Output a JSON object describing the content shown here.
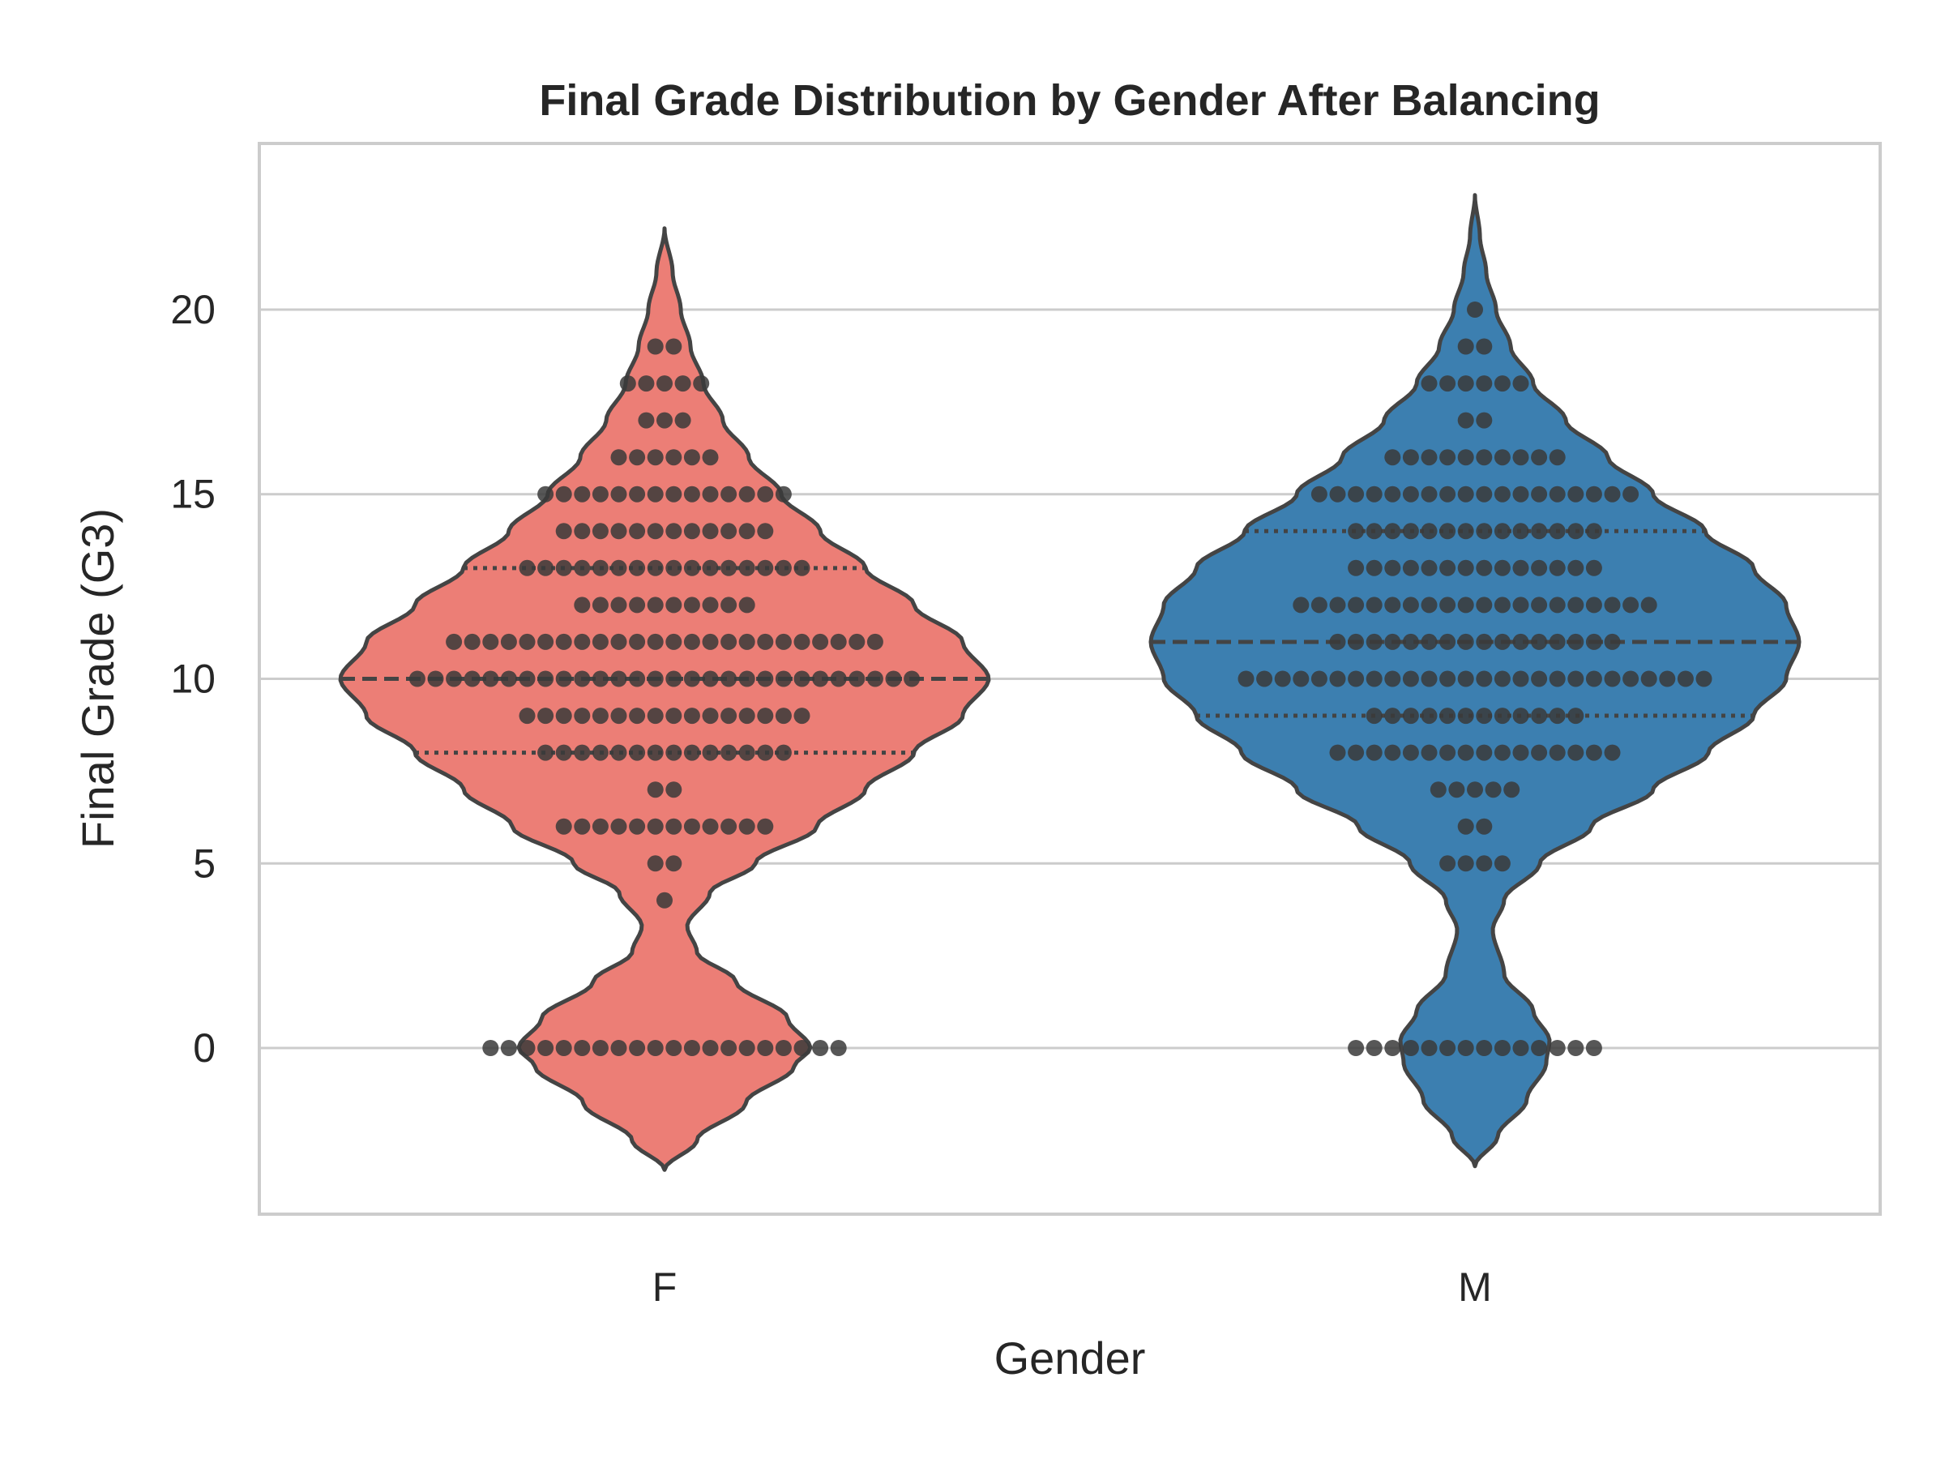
{
  "chart_data": {
    "type": "violin",
    "title": "Final Grade Distribution by Gender After Balancing",
    "xlabel": "Gender",
    "ylabel": "Final Grade (G3)",
    "ylim": [
      -4.5,
      24.5
    ],
    "yticks": [
      0,
      5,
      10,
      15,
      20
    ],
    "grid": true,
    "legend": "none",
    "overlay": "swarm",
    "categories": [
      "F",
      "M"
    ],
    "colors": {
      "F": "#ec7e76",
      "M": "#3c7fb0",
      "outline": "#444444",
      "point": "#3a3a3a",
      "grid": "#cccccc",
      "frame": "#cccccc"
    },
    "series": [
      {
        "name": "F",
        "quartiles": {
          "q1": 8,
          "median": 10,
          "q3": 13
        },
        "kde_range": [
          -3.3,
          22.2
        ],
        "grade_counts": [
          [
            0,
            20
          ],
          [
            4,
            1
          ],
          [
            5,
            2
          ],
          [
            6,
            12
          ],
          [
            7,
            2
          ],
          [
            8,
            14
          ],
          [
            9,
            16
          ],
          [
            10,
            28
          ],
          [
            11,
            24
          ],
          [
            12,
            10
          ],
          [
            13,
            16
          ],
          [
            14,
            12
          ],
          [
            15,
            14
          ],
          [
            16,
            6
          ],
          [
            17,
            3
          ],
          [
            18,
            5
          ],
          [
            19,
            2
          ]
        ],
        "density_profile": [
          [
            -3.3,
            0
          ],
          [
            -2.5,
            0.1
          ],
          [
            -1.5,
            0.25
          ],
          [
            -0.5,
            0.4
          ],
          [
            0,
            0.45
          ],
          [
            0.8,
            0.38
          ],
          [
            1.8,
            0.22
          ],
          [
            2.6,
            0.1
          ],
          [
            3.3,
            0.07
          ],
          [
            4.2,
            0.14
          ],
          [
            5,
            0.28
          ],
          [
            6,
            0.47
          ],
          [
            7,
            0.62
          ],
          [
            8,
            0.77
          ],
          [
            9,
            0.92
          ],
          [
            10,
            1.0
          ],
          [
            11,
            0.92
          ],
          [
            12,
            0.77
          ],
          [
            13,
            0.62
          ],
          [
            14,
            0.48
          ],
          [
            15,
            0.36
          ],
          [
            16,
            0.26
          ],
          [
            17,
            0.18
          ],
          [
            18,
            0.12
          ],
          [
            19,
            0.08
          ],
          [
            20,
            0.05
          ],
          [
            21,
            0.025
          ],
          [
            22.2,
            0
          ]
        ]
      },
      {
        "name": "M",
        "quartiles": {
          "q1": 9,
          "median": 11,
          "q3": 14
        },
        "kde_range": [
          -3.2,
          23.1
        ],
        "grade_counts": [
          [
            0,
            14
          ],
          [
            5,
            4
          ],
          [
            6,
            2
          ],
          [
            7,
            5
          ],
          [
            8,
            16
          ],
          [
            9,
            12
          ],
          [
            10,
            26
          ],
          [
            11,
            16
          ],
          [
            12,
            20
          ],
          [
            13,
            14
          ],
          [
            14,
            14
          ],
          [
            15,
            18
          ],
          [
            16,
            10
          ],
          [
            17,
            2
          ],
          [
            18,
            6
          ],
          [
            19,
            2
          ],
          [
            20,
            1
          ]
        ],
        "density_profile": [
          [
            -3.2,
            0
          ],
          [
            -2.4,
            0.07
          ],
          [
            -1.4,
            0.16
          ],
          [
            -0.4,
            0.22
          ],
          [
            0.2,
            0.23
          ],
          [
            1,
            0.18
          ],
          [
            2,
            0.09
          ],
          [
            3.2,
            0.055
          ],
          [
            4,
            0.09
          ],
          [
            5,
            0.2
          ],
          [
            6,
            0.36
          ],
          [
            7,
            0.55
          ],
          [
            8,
            0.72
          ],
          [
            9,
            0.86
          ],
          [
            10,
            0.96
          ],
          [
            11,
            1.0
          ],
          [
            12,
            0.96
          ],
          [
            13,
            0.86
          ],
          [
            14,
            0.71
          ],
          [
            15,
            0.55
          ],
          [
            16,
            0.41
          ],
          [
            17,
            0.28
          ],
          [
            18,
            0.18
          ],
          [
            19,
            0.11
          ],
          [
            20,
            0.065
          ],
          [
            21,
            0.035
          ],
          [
            22,
            0.015
          ],
          [
            23.1,
            0
          ]
        ]
      }
    ]
  }
}
